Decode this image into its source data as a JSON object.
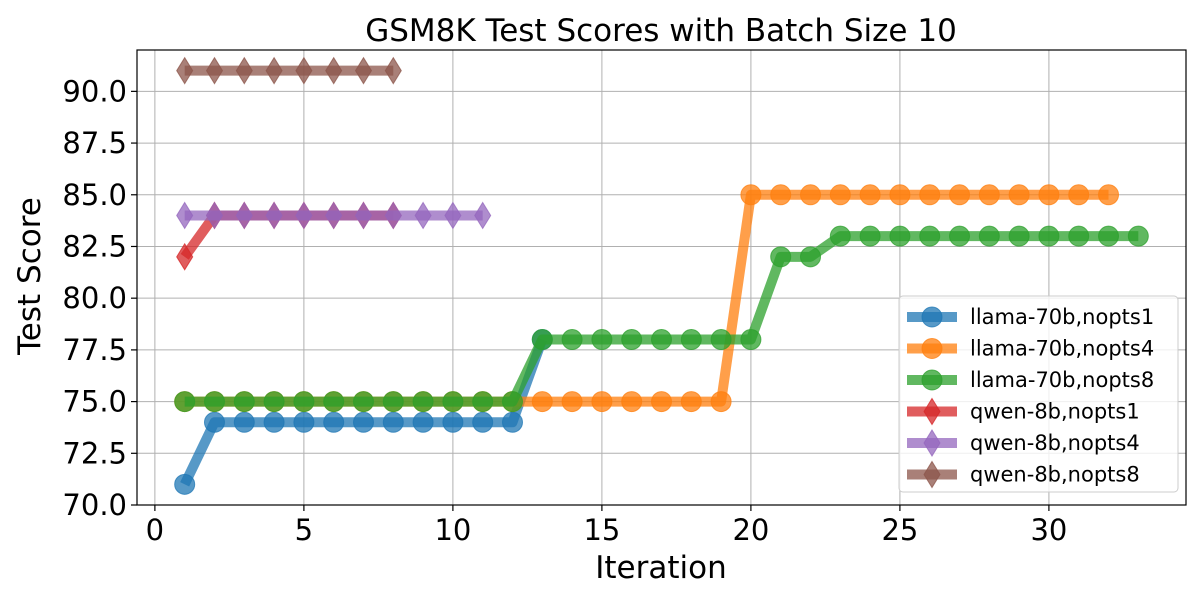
{
  "chart_data": {
    "type": "line",
    "title": "GSM8K Test Scores with Batch Size 10",
    "xlabel": "Iteration",
    "ylabel": "Test Score",
    "xlim": [
      -0.6,
      34.6
    ],
    "ylim": [
      70.0,
      92.0
    ],
    "xticks": [
      0,
      5,
      10,
      15,
      20,
      25,
      30
    ],
    "xtick_labels": [
      "0",
      "5",
      "10",
      "15",
      "20",
      "25",
      "30"
    ],
    "yticks": [
      70.0,
      72.5,
      75.0,
      77.5,
      80.0,
      82.5,
      85.0,
      87.5,
      90.0
    ],
    "ytick_labels": [
      "70.0",
      "72.5",
      "75.0",
      "77.5",
      "80.0",
      "82.5",
      "85.0",
      "87.5",
      "90.0"
    ],
    "grid": true,
    "legend_position": "lower-right",
    "series": [
      {
        "name": "llama-70b,nopts1",
        "color": "#1f77b4",
        "marker": "circle",
        "x": [
          1,
          2,
          3,
          4,
          5,
          6,
          7,
          8,
          9,
          10,
          11,
          12,
          13
        ],
        "y": [
          71,
          74,
          74,
          74,
          74,
          74,
          74,
          74,
          74,
          74,
          74,
          74,
          78
        ]
      },
      {
        "name": "llama-70b,nopts4",
        "color": "#ff7f0e",
        "marker": "circle",
        "x": [
          1,
          2,
          3,
          4,
          5,
          6,
          7,
          8,
          9,
          10,
          11,
          12,
          13,
          14,
          15,
          16,
          17,
          18,
          19,
          20,
          21,
          22,
          23,
          24,
          25,
          26,
          27,
          28,
          29,
          30,
          31,
          32
        ],
        "y": [
          75,
          75,
          75,
          75,
          75,
          75,
          75,
          75,
          75,
          75,
          75,
          75,
          75,
          75,
          75,
          75,
          75,
          75,
          75,
          85,
          85,
          85,
          85,
          85,
          85,
          85,
          85,
          85,
          85,
          85,
          85,
          85
        ]
      },
      {
        "name": "llama-70b,nopts8",
        "color": "#2ca02c",
        "marker": "circle",
        "x": [
          1,
          2,
          3,
          4,
          5,
          6,
          7,
          8,
          9,
          10,
          11,
          12,
          13,
          14,
          15,
          16,
          17,
          18,
          19,
          20,
          21,
          22,
          23,
          24,
          25,
          26,
          27,
          28,
          29,
          30,
          31,
          32,
          33
        ],
        "y": [
          75,
          75,
          75,
          75,
          75,
          75,
          75,
          75,
          75,
          75,
          75,
          75,
          78,
          78,
          78,
          78,
          78,
          78,
          78,
          78,
          82,
          82,
          83,
          83,
          83,
          83,
          83,
          83,
          83,
          83,
          83,
          83,
          83
        ]
      },
      {
        "name": "qwen-8b,nopts1",
        "color": "#d62728",
        "marker": "diamond",
        "x": [
          1,
          2,
          3,
          4,
          5,
          6,
          7,
          8
        ],
        "y": [
          82,
          84,
          84,
          84,
          84,
          84,
          84,
          84
        ]
      },
      {
        "name": "qwen-8b,nopts4",
        "color": "#9467bd",
        "marker": "diamond",
        "x": [
          1,
          2,
          3,
          4,
          5,
          6,
          7,
          8,
          9,
          10,
          11
        ],
        "y": [
          84,
          84,
          84,
          84,
          84,
          84,
          84,
          84,
          84,
          84,
          84
        ]
      },
      {
        "name": "qwen-8b,nopts8",
        "color": "#8c564b",
        "marker": "diamond",
        "x": [
          1,
          2,
          3,
          4,
          5,
          6,
          7,
          8
        ],
        "y": [
          91,
          91,
          91,
          91,
          91,
          91,
          91,
          91
        ]
      }
    ]
  }
}
